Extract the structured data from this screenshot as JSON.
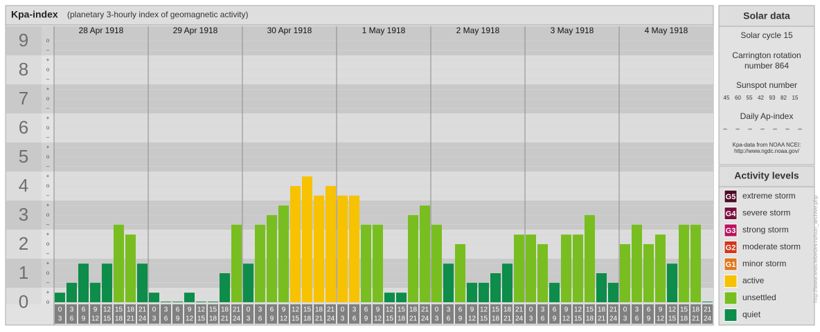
{
  "chart_data": {
    "type": "bar",
    "title": "Kpa-index",
    "subtitle": "(planetary 3-hourly index of geomagnetic activity)",
    "days": [
      "28 Apr 1918",
      "29 Apr 1918",
      "30 Apr 1918",
      "1 May 1918",
      "2 May 1918",
      "3 May 1918",
      "4 May 1918"
    ],
    "hour_labels": [
      [
        "0",
        "3"
      ],
      [
        "3",
        "6"
      ],
      [
        "6",
        "9"
      ],
      [
        "9",
        "12"
      ],
      [
        "12",
        "15"
      ],
      [
        "15",
        "18"
      ],
      [
        "18",
        "21"
      ],
      [
        "21",
        "24"
      ]
    ],
    "values": [
      0.33,
      0.67,
      1.33,
      0.67,
      1.33,
      2.67,
      2.33,
      1.33,
      0.33,
      0,
      0,
      0.33,
      0,
      0,
      1,
      2.67,
      1.33,
      2.67,
      3,
      3.33,
      4,
      4.33,
      3.67,
      4,
      3.67,
      3.67,
      2.67,
      2.67,
      0.33,
      0.33,
      3,
      3.33,
      2.67,
      1.33,
      2,
      0.67,
      0.67,
      1,
      1.33,
      2.33,
      2.33,
      2,
      0.67,
      2.33,
      2.33,
      3,
      1,
      0.67,
      2,
      2.67,
      2,
      2.33,
      1.33,
      2.67,
      2.67,
      0
    ],
    "colors": [
      "#0d8c4a",
      "#0d8c4a",
      "#0d8c4a",
      "#0d8c4a",
      "#0d8c4a",
      "#78be20",
      "#78be20",
      "#0d8c4a",
      "#0d8c4a",
      "#0d8c4a",
      "#0d8c4a",
      "#0d8c4a",
      "#0d8c4a",
      "#0d8c4a",
      "#0d8c4a",
      "#78be20",
      "#0d8c4a",
      "#78be20",
      "#78be20",
      "#78be20",
      "#f7c200",
      "#f7c200",
      "#f7c200",
      "#f7c200",
      "#f7c200",
      "#f7c200",
      "#78be20",
      "#78be20",
      "#0d8c4a",
      "#0d8c4a",
      "#78be20",
      "#78be20",
      "#78be20",
      "#0d8c4a",
      "#78be20",
      "#0d8c4a",
      "#0d8c4a",
      "#0d8c4a",
      "#0d8c4a",
      "#78be20",
      "#78be20",
      "#78be20",
      "#0d8c4a",
      "#78be20",
      "#78be20",
      "#78be20",
      "#0d8c4a",
      "#0d8c4a",
      "#78be20",
      "#78be20",
      "#78be20",
      "#78be20",
      "#0d8c4a",
      "#78be20",
      "#78be20",
      "#0d8c4a"
    ],
    "ylim": [
      0,
      9.5
    ],
    "yticks": [
      0,
      1,
      2,
      3,
      4,
      5,
      6,
      7,
      8,
      9
    ],
    "minor_ticks": [
      {
        "value": 0,
        "label": "o"
      },
      {
        "value": 0.33,
        "label": "+"
      },
      {
        "value": 0.67,
        "label": "–"
      },
      {
        "value": 1,
        "label": "o"
      },
      {
        "value": 1.33,
        "label": "+"
      },
      {
        "value": 1.67,
        "label": "–"
      },
      {
        "value": 2,
        "label": "o"
      },
      {
        "value": 2.33,
        "label": "+"
      },
      {
        "value": 2.67,
        "label": "–"
      },
      {
        "value": 3,
        "label": "o"
      },
      {
        "value": 3.33,
        "label": "+"
      },
      {
        "value": 3.67,
        "label": "–"
      },
      {
        "value": 4,
        "label": "o"
      },
      {
        "value": 4.33,
        "label": "+"
      },
      {
        "value": 4.67,
        "label": "–"
      },
      {
        "value": 5,
        "label": "o"
      },
      {
        "value": 5.33,
        "label": "+"
      },
      {
        "value": 5.67,
        "label": "–"
      },
      {
        "value": 6,
        "label": "o"
      },
      {
        "value": 6.33,
        "label": "+"
      },
      {
        "value": 6.67,
        "label": "–"
      },
      {
        "value": 7,
        "label": "o"
      },
      {
        "value": 7.33,
        "label": "+"
      },
      {
        "value": 7.67,
        "label": "–"
      },
      {
        "value": 8,
        "label": "o"
      },
      {
        "value": 8.33,
        "label": "+"
      },
      {
        "value": 8.67,
        "label": "–"
      },
      {
        "value": 9,
        "label": "o"
      }
    ],
    "grid": true
  },
  "solar_data": {
    "title": "Solar data",
    "cycle": "Solar cycle 15",
    "carrington": [
      "Carrington rotation",
      "number 864"
    ],
    "sunspot_label": "Sunspot number",
    "sunspots": [
      45,
      60,
      55,
      42,
      93,
      82,
      15
    ],
    "ap_label": "Daily Ap-index",
    "ap": [
      "–",
      "–",
      "–",
      "–",
      "–",
      "–",
      "–"
    ],
    "note": [
      "Kpa-data from NOAA NCEI:",
      "http://www.ngdc.noaa.gov/"
    ]
  },
  "activity_levels": {
    "title": "Activity levels",
    "items": [
      {
        "code": "G5",
        "label": "extreme storm",
        "color": "#4f0a26"
      },
      {
        "code": "G4",
        "label": "severe storm",
        "color": "#781040"
      },
      {
        "code": "G3",
        "label": "strong storm",
        "color": "#b8125e"
      },
      {
        "code": "G2",
        "label": "moderate storm",
        "color": "#d5361a"
      },
      {
        "code": "G1",
        "label": "minor storm",
        "color": "#e0771b"
      },
      {
        "code": null,
        "label": "active",
        "color": "#f7c200"
      },
      {
        "code": null,
        "label": "unsettled",
        "color": "#78be20"
      },
      {
        "code": null,
        "label": "quiet",
        "color": "#0d8c4a"
      }
    ]
  },
  "source_url": "http://www.tesis.lebedev.ru/sun_archive.php"
}
